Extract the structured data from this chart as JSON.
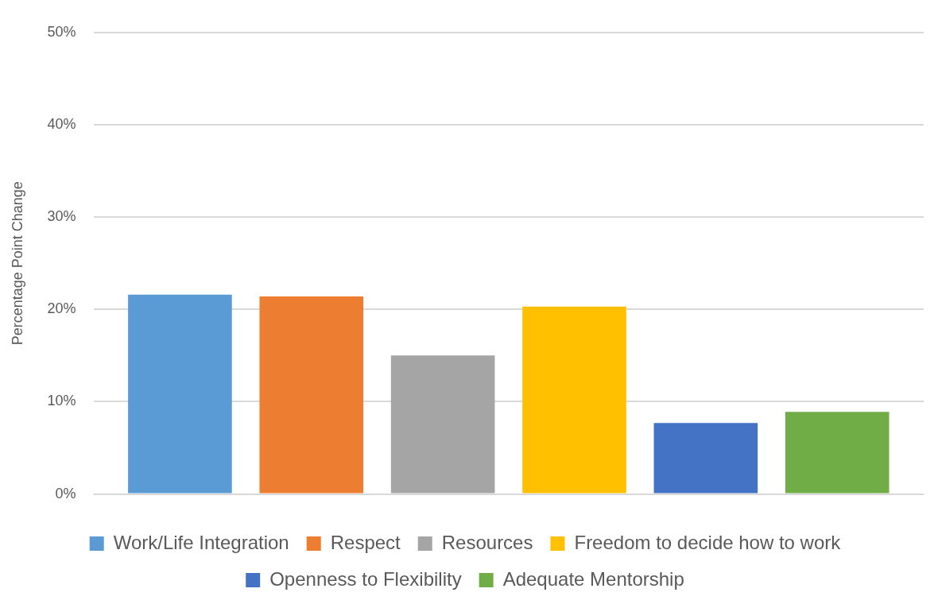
{
  "chart_data": {
    "type": "bar",
    "ylabel": "Percentage Point Change",
    "categories": [
      null
    ],
    "series": [
      {
        "name": "Work/Life Integration",
        "color": "#5b9bd5",
        "values": [
          21.6
        ]
      },
      {
        "name": "Respect",
        "color": "#ed7d31",
        "values": [
          21.4
        ]
      },
      {
        "name": "Resources",
        "color": "#a5a5a5",
        "values": [
          15.0
        ]
      },
      {
        "name": "Freedom to decide how to work",
        "color": "#ffc000",
        "values": [
          20.3
        ]
      },
      {
        "name": "Openness to Flexibility",
        "color": "#4472c4",
        "values": [
          7.7
        ]
      },
      {
        "name": "Adequate Mentorship",
        "color": "#70ad47",
        "values": [
          8.9
        ]
      }
    ],
    "ylim": [
      0,
      50
    ],
    "yticks": [
      {
        "value": 0,
        "label": "0%"
      },
      {
        "value": 10,
        "label": "10%"
      },
      {
        "value": 20,
        "label": "20%"
      },
      {
        "value": 30,
        "label": "30%"
      },
      {
        "value": 40,
        "label": "40%"
      },
      {
        "value": 50,
        "label": "50%"
      }
    ],
    "grid": "y",
    "legend": "bottom"
  }
}
